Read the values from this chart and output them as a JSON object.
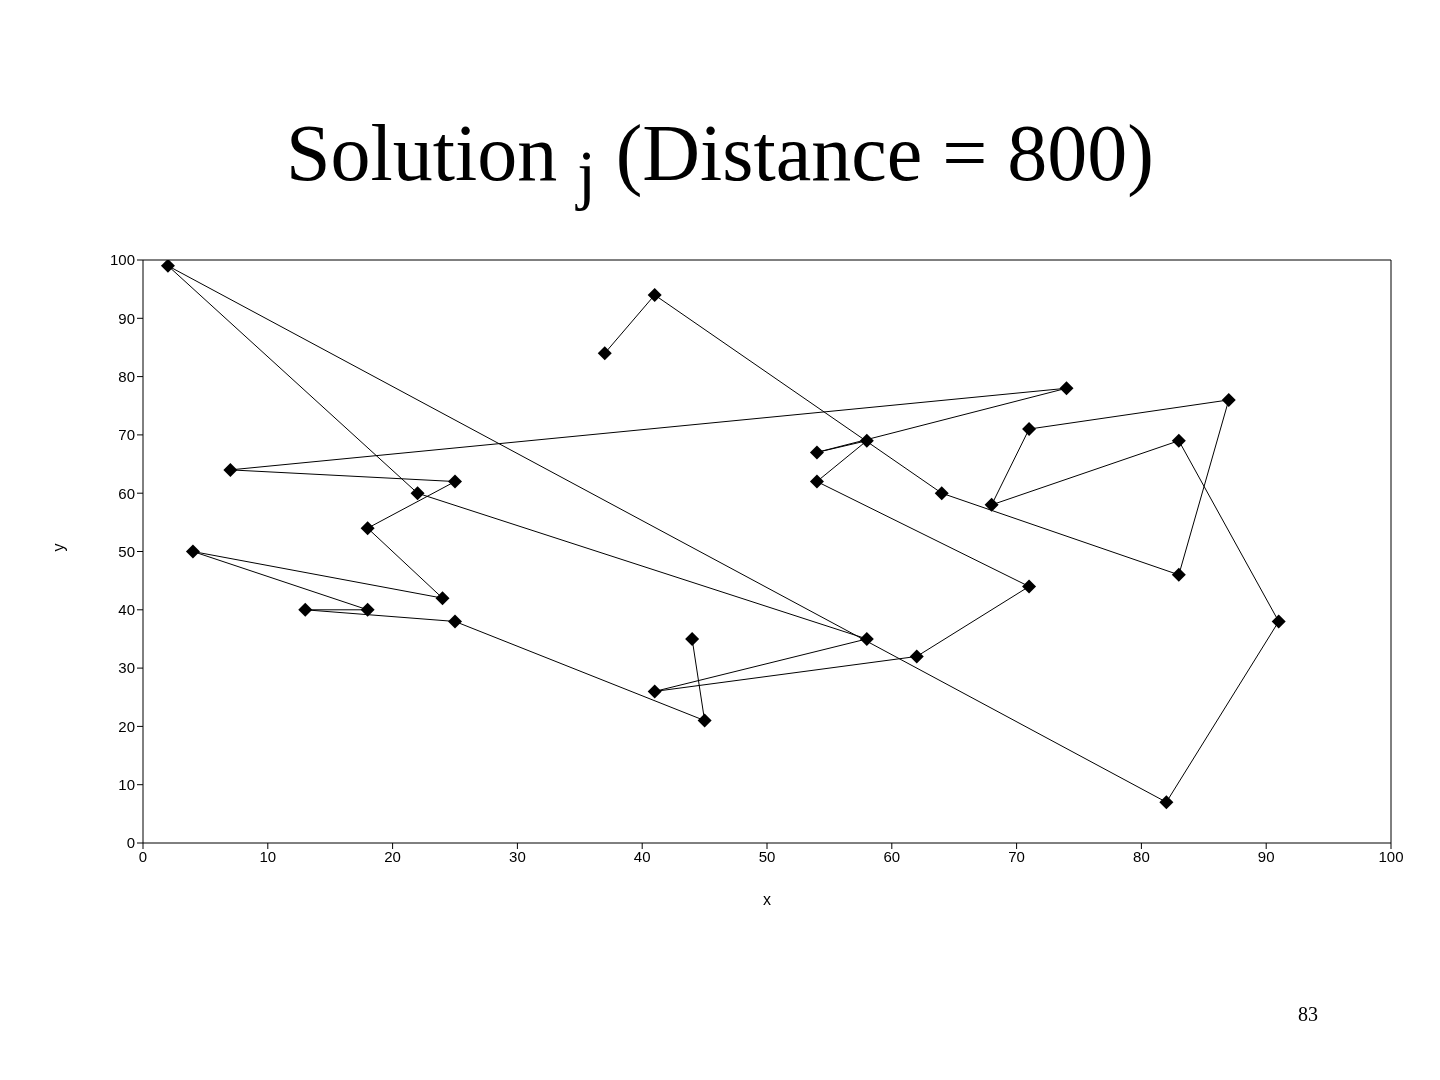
{
  "chart_data": {
    "type": "line",
    "title": "Solution $_{j}$ (Distance = 800)",
    "xlabel": "x",
    "ylabel": "y",
    "annotations": [
      "83"
    ],
    "series": [
      {
        "color": "#000000",
        "x": [
          37,
          41,
          64,
          83,
          87,
          71,
          68,
          83,
          91,
          82,
          2,
          22,
          58,
          41,
          62,
          71,
          54,
          58,
          54,
          74,
          7,
          25,
          18,
          24,
          4,
          18,
          13,
          25,
          45,
          44
        ],
        "values": [
          84,
          94,
          60,
          46,
          76,
          71,
          58,
          69,
          38,
          7,
          99,
          60,
          35,
          26,
          32,
          44,
          62,
          69,
          67,
          78,
          64,
          62,
          54,
          42,
          50,
          40,
          40,
          38,
          21,
          35
        ]
      }
    ],
    "xlim": [
      0,
      100
    ],
    "xticks": [
      0,
      10,
      20,
      30,
      40,
      50,
      60,
      70,
      80,
      90,
      100
    ],
    "ylim": [
      0,
      100
    ],
    "yticks": [
      0,
      10,
      20,
      30,
      40,
      50,
      60,
      70,
      80,
      90,
      100
    ],
    "marker": "diamond",
    "line_style": "solid"
  }
}
